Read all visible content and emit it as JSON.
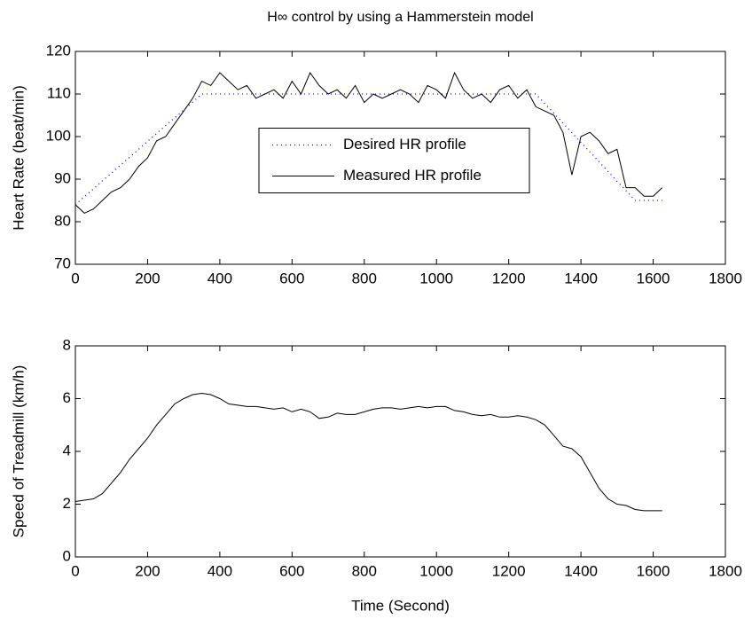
{
  "chart_data": [
    {
      "type": "line",
      "title": "H∞ control by using a Hammerstein model",
      "ylabel": "Heart Rate (beat/min)",
      "xlim": [
        0,
        1800
      ],
      "xticks": [
        0,
        200,
        400,
        600,
        800,
        1000,
        1200,
        1400,
        1600,
        1800
      ],
      "ylim": [
        70,
        120
      ],
      "yticks": [
        70,
        80,
        90,
        100,
        110,
        120
      ],
      "legend": "center",
      "x": [
        0,
        25,
        50,
        75,
        100,
        125,
        150,
        175,
        200,
        225,
        250,
        275,
        300,
        325,
        350,
        375,
        400,
        425,
        450,
        475,
        500,
        525,
        550,
        575,
        600,
        625,
        650,
        675,
        700,
        725,
        750,
        775,
        800,
        825,
        850,
        875,
        900,
        925,
        950,
        975,
        1000,
        1025,
        1050,
        1075,
        1100,
        1125,
        1150,
        1175,
        1200,
        1225,
        1250,
        1275,
        1300,
        1325,
        1350,
        1375,
        1400,
        1425,
        1450,
        1475,
        1500,
        1525,
        1550,
        1575,
        1600,
        1625
      ],
      "series": [
        {
          "name": "Desired HR profile",
          "color": "#0000ff",
          "style": "dotted",
          "values": [
            84,
            85.9,
            87.7,
            89.6,
            91.4,
            93.3,
            95.1,
            97,
            98.9,
            100.7,
            102.6,
            104.4,
            106.3,
            108.1,
            110,
            110,
            110,
            110,
            110,
            110,
            110,
            110,
            110,
            110,
            110,
            110,
            110,
            110,
            110,
            110,
            110,
            110,
            110,
            110,
            110,
            110,
            110,
            110,
            110,
            110,
            110,
            110,
            110,
            110,
            110,
            110,
            110,
            110,
            110,
            110,
            110,
            110,
            107.7,
            105.5,
            103.2,
            100.9,
            98.6,
            96.4,
            94.1,
            91.8,
            89.5,
            87.3,
            85,
            85,
            85,
            85
          ]
        },
        {
          "name": "Measured HR profile",
          "color": "#000000",
          "style": "solid",
          "values": [
            84,
            82,
            83,
            85,
            87,
            88,
            90,
            93,
            95,
            99,
            100,
            103,
            106,
            109,
            113,
            112,
            115,
            113,
            111,
            112,
            109,
            110,
            111,
            109,
            113,
            110,
            115,
            112,
            110,
            111,
            109,
            112,
            108,
            110,
            109,
            110,
            111,
            110,
            108,
            112,
            111,
            109,
            115,
            111,
            109,
            110,
            108,
            111,
            112,
            109,
            111,
            107,
            106,
            105,
            101,
            91,
            100,
            101,
            99,
            96,
            97,
            88,
            88,
            86,
            86,
            88
          ]
        }
      ]
    },
    {
      "type": "line",
      "xlabel": "Time (Second)",
      "ylabel": "Speed of Treadmill (km/h)",
      "xlim": [
        0,
        1800
      ],
      "xticks": [
        0,
        200,
        400,
        600,
        800,
        1000,
        1200,
        1400,
        1600,
        1800
      ],
      "ylim": [
        0,
        8
      ],
      "yticks": [
        0,
        2,
        4,
        6,
        8
      ],
      "x": [
        0,
        25,
        50,
        75,
        100,
        125,
        150,
        175,
        200,
        225,
        250,
        275,
        300,
        325,
        350,
        375,
        400,
        425,
        450,
        475,
        500,
        525,
        550,
        575,
        600,
        625,
        650,
        675,
        700,
        725,
        750,
        775,
        800,
        825,
        850,
        875,
        900,
        925,
        950,
        975,
        1000,
        1025,
        1050,
        1075,
        1100,
        1125,
        1150,
        1175,
        1200,
        1225,
        1250,
        1275,
        1300,
        1325,
        1350,
        1375,
        1400,
        1425,
        1450,
        1475,
        1500,
        1525,
        1550,
        1575,
        1600,
        1625
      ],
      "series": [
        {
          "color": "#000000",
          "style": "solid",
          "values": [
            2.1,
            2.15,
            2.2,
            2.4,
            2.8,
            3.2,
            3.7,
            4.1,
            4.5,
            5.0,
            5.4,
            5.8,
            6.0,
            6.15,
            6.2,
            6.15,
            6.0,
            5.8,
            5.75,
            5.7,
            5.7,
            5.65,
            5.6,
            5.65,
            5.5,
            5.6,
            5.5,
            5.25,
            5.3,
            5.45,
            5.4,
            5.4,
            5.5,
            5.6,
            5.65,
            5.65,
            5.6,
            5.65,
            5.7,
            5.65,
            5.7,
            5.7,
            5.55,
            5.5,
            5.4,
            5.35,
            5.4,
            5.3,
            5.3,
            5.35,
            5.3,
            5.2,
            5.0,
            4.6,
            4.2,
            4.1,
            3.8,
            3.2,
            2.6,
            2.2,
            2.0,
            1.95,
            1.8,
            1.75,
            1.75,
            1.75
          ]
        }
      ]
    }
  ]
}
